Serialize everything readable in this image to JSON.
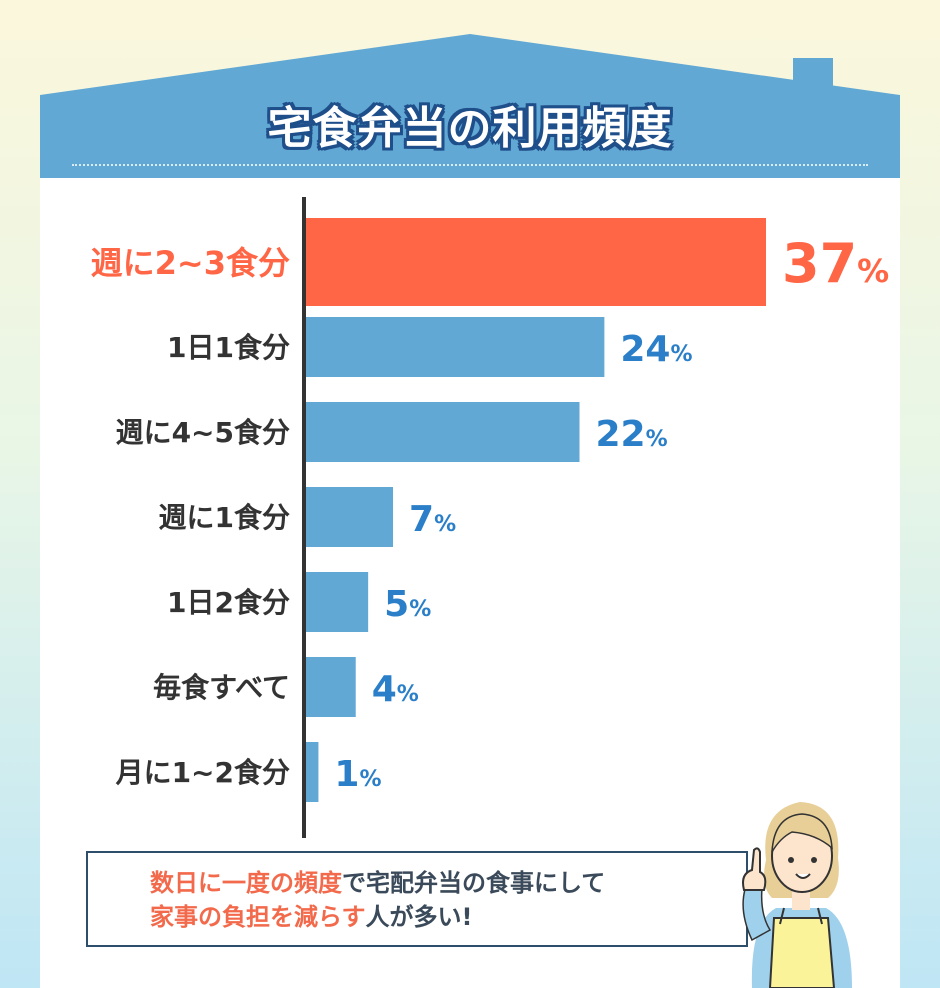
{
  "title": "宅食弁当の利用頻度",
  "colors": {
    "highlight": "#ff6646",
    "bar": "#62a8d4",
    "value": "#2a7fc8",
    "label": "#333333",
    "roof": "#62a8d4"
  },
  "chart_data": {
    "type": "bar",
    "orientation": "horizontal",
    "categories": [
      "週に2~3食分",
      "1日1食分",
      "週に4~5食分",
      "週に1食分",
      "1日2食分",
      "毎食すべて",
      "月に1~2食分"
    ],
    "values": [
      37,
      24,
      22,
      7,
      5,
      4,
      1
    ],
    "unit": "%",
    "highlight_index": 0,
    "xlim": [
      0,
      37
    ],
    "title": "宅食弁当の利用頻度",
    "xlabel": "",
    "ylabel": ""
  },
  "note": {
    "line1_highlight1": "数日に一度の頻度",
    "line1_rest": "で宅配弁当の食事にして",
    "line2_highlight": "家事の負担を減らす",
    "line2_rest": "人が多い!"
  },
  "illustration": "woman-pointing-icon"
}
